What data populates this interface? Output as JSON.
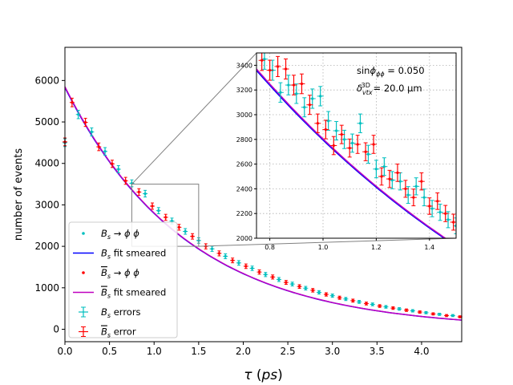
{
  "chart_data": {
    "type": "scatter",
    "title": "",
    "xlabel": "τ (ps)",
    "ylabel": "number of events",
    "xlim": [
      0,
      4.45
    ],
    "ylim": [
      -300,
      6800
    ],
    "xticks": [
      "0.0",
      "0.5",
      "1.0",
      "1.5",
      "2.0",
      "2.5",
      "3.0",
      "3.5",
      "4.0"
    ],
    "yticks": [
      "0",
      "1000",
      "2000",
      "3000",
      "4000",
      "5000",
      "6000"
    ],
    "legend_position": "lower-left",
    "legend": [
      {
        "key": "bs_points",
        "label": "Bs → ϕ ϕ",
        "color": "#00bfbf",
        "style": "point"
      },
      {
        "key": "bs_fit",
        "label": "Bs fit smeared",
        "color": "#0000ff",
        "style": "line"
      },
      {
        "key": "bsbar_points",
        "label": "B̄s → ϕ ϕ",
        "color": "#ff0000",
        "style": "point"
      },
      {
        "key": "bsbar_fit",
        "label": "B̄s fit smeared",
        "color": "#bf00bf",
        "style": "line"
      },
      {
        "key": "bs_errors",
        "label": "Bs errors",
        "color": "#00bfbf",
        "style": "errorbar"
      },
      {
        "key": "bsbar_errors",
        "label": "B̄s error",
        "color": "#ff0000",
        "style": "errorbar"
      }
    ],
    "series": [
      {
        "name": "Bs → ϕ ϕ",
        "color": "#00bfbf",
        "x": [
          0.0,
          0.15,
          0.3,
          0.45,
          0.6,
          0.75,
          0.9,
          1.05,
          1.2,
          1.35,
          1.5,
          1.65,
          1.8,
          1.95,
          2.1,
          2.25,
          2.4,
          2.55,
          2.7,
          2.85,
          3.0,
          3.15,
          3.3,
          3.45,
          3.6,
          3.75,
          3.9,
          4.05,
          4.2,
          4.35
        ],
        "y": [
          4500,
          5180,
          4760,
          4290,
          3860,
          3520,
          3270,
          2860,
          2610,
          2360,
          2140,
          1940,
          1760,
          1600,
          1470,
          1320,
          1200,
          1090,
          990,
          890,
          810,
          730,
          660,
          600,
          540,
          490,
          445,
          400,
          360,
          330
        ]
      },
      {
        "name": "B̄s → ϕ ϕ",
        "color": "#ff0000",
        "x": [
          0.0,
          0.08,
          0.23,
          0.38,
          0.53,
          0.68,
          0.83,
          0.98,
          1.13,
          1.28,
          1.43,
          1.58,
          1.73,
          1.88,
          2.03,
          2.18,
          2.33,
          2.48,
          2.63,
          2.78,
          2.93,
          3.08,
          3.23,
          3.38,
          3.53,
          3.68,
          3.83,
          3.98,
          4.13,
          4.28,
          4.43
        ],
        "y": [
          4520,
          5470,
          4990,
          4400,
          3990,
          3580,
          3310,
          2970,
          2700,
          2460,
          2240,
          2000,
          1830,
          1660,
          1520,
          1380,
          1260,
          1130,
          1030,
          940,
          840,
          760,
          690,
          620,
          560,
          510,
          460,
          415,
          370,
          330,
          300
        ]
      },
      {
        "name": "Bs fit smeared",
        "color": "#0000ff",
        "tau": 1.36,
        "amplitude": 5830
      },
      {
        "name": "B̄s fit smeared",
        "color": "#bf00bf",
        "tau": 1.36,
        "amplitude": 5850
      }
    ],
    "inset": {
      "xlim": [
        0.75,
        1.5
      ],
      "ylim": [
        2000,
        3500
      ],
      "xticks": [
        "0.8",
        "1.0",
        "1.2",
        "1.4"
      ],
      "yticks": [
        "2000",
        "2200",
        "2400",
        "2600",
        "2800",
        "3000",
        "3200",
        "3400"
      ],
      "bs_x": [
        0.78,
        0.81,
        0.84,
        0.87,
        0.9,
        0.93,
        0.96,
        0.99,
        1.02,
        1.05,
        1.08,
        1.11,
        1.14,
        1.17,
        1.2,
        1.23,
        1.26,
        1.29,
        1.32,
        1.35,
        1.38,
        1.41,
        1.44,
        1.47,
        1.5
      ],
      "bs_y": [
        3450,
        3360,
        3180,
        3240,
        3170,
        3060,
        3130,
        3150,
        2950,
        2870,
        2800,
        2770,
        2930,
        2680,
        2560,
        2580,
        2470,
        2460,
        2350,
        2420,
        2330,
        2240,
        2210,
        2150,
        2100
      ],
      "bsbar_x": [
        0.77,
        0.8,
        0.83,
        0.86,
        0.89,
        0.92,
        0.95,
        0.98,
        1.01,
        1.04,
        1.07,
        1.1,
        1.13,
        1.16,
        1.19,
        1.22,
        1.25,
        1.28,
        1.31,
        1.34,
        1.37,
        1.4,
        1.43,
        1.46,
        1.49
      ],
      "bsbar_y": [
        3440,
        3360,
        3390,
        3370,
        3240,
        3250,
        3080,
        2930,
        2880,
        2750,
        2840,
        2730,
        2760,
        2700,
        2760,
        2500,
        2480,
        2530,
        2400,
        2330,
        2460,
        2260,
        2300,
        2200,
        2130
      ]
    },
    "annotations": [
      "sinϕ_ϕϕ = 0.050",
      "δ_vtx^3D = 20.0 μm"
    ]
  }
}
